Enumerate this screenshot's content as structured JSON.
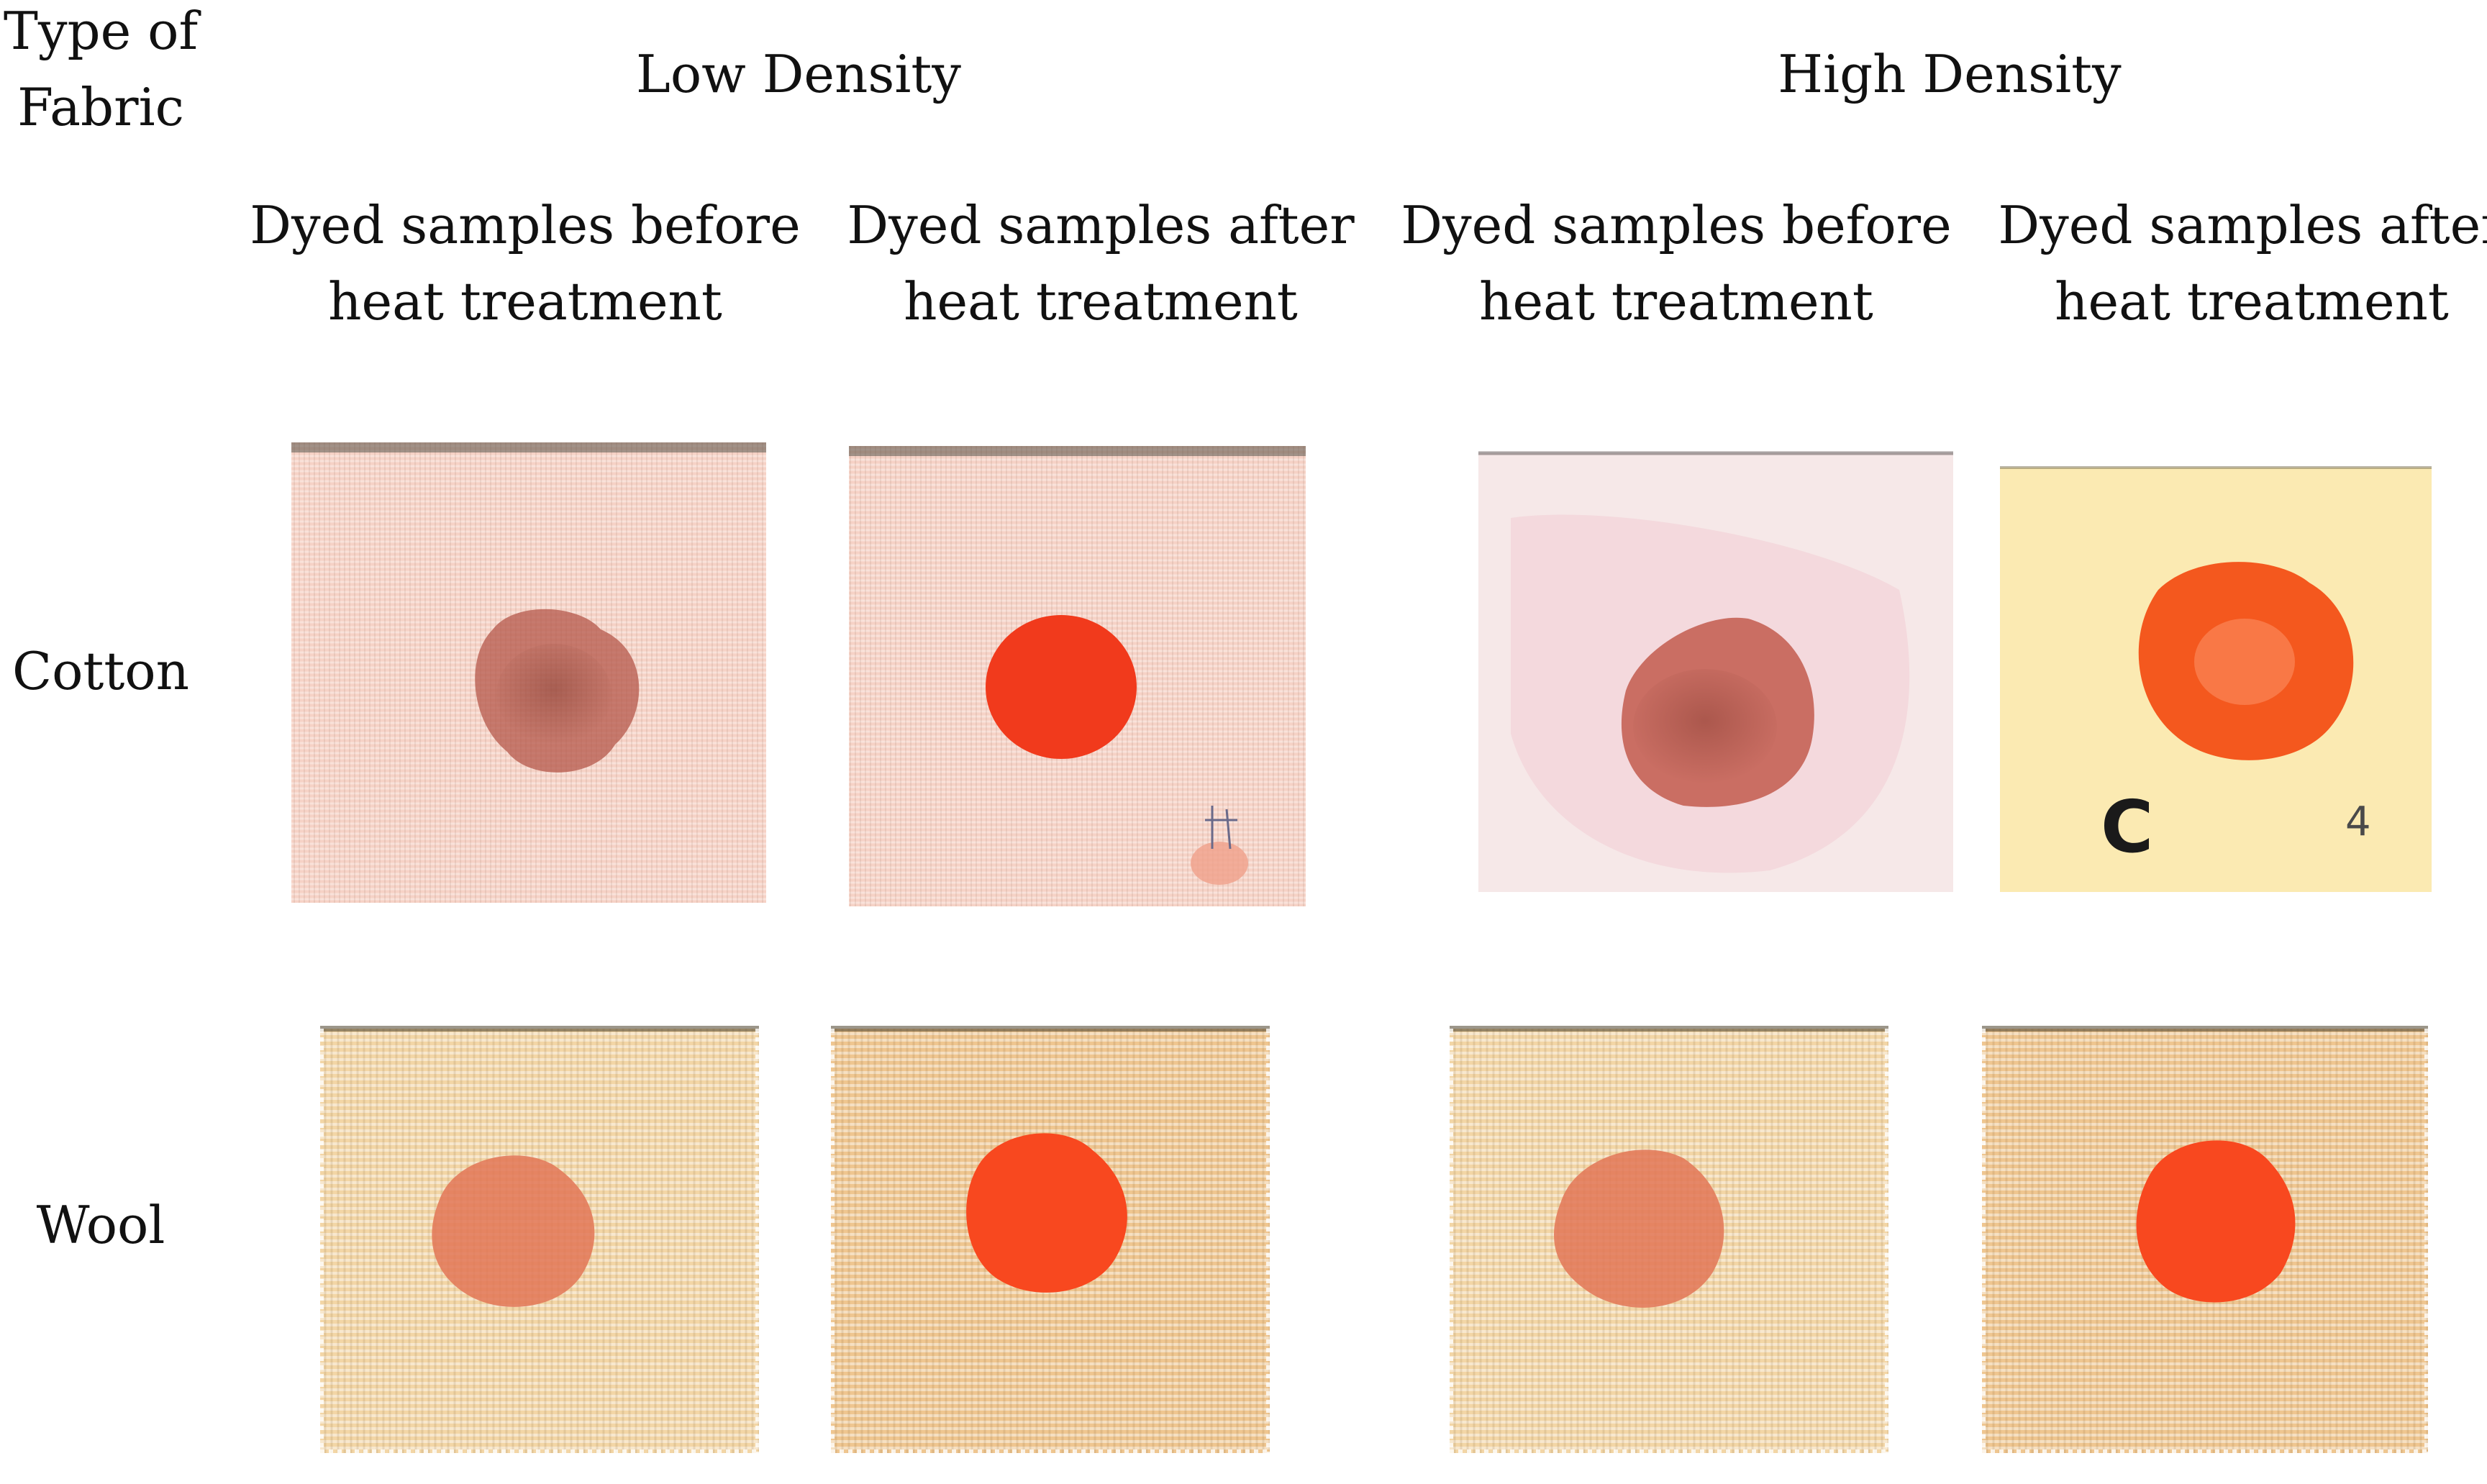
{
  "corner_header": {
    "line1": "Type of",
    "line2": "Fabric"
  },
  "groups": [
    {
      "label": "Low Density"
    },
    {
      "label": "High Density"
    }
  ],
  "columns": [
    {
      "line1": "Dyed samples before",
      "line2": "heat treatment"
    },
    {
      "line1": "Dyed samples after",
      "line2": "heat treatment"
    },
    {
      "line1": "Dyed samples before",
      "line2": "heat treatment"
    },
    {
      "line1": "Dyed samples after",
      "line2": "heat treatment"
    }
  ],
  "rows": [
    {
      "label": "Cotton"
    },
    {
      "label": "Wool"
    }
  ],
  "sample_marks": {
    "cotton_high_after_letter": "C",
    "cotton_high_after_number": "4"
  },
  "colors": {
    "cotton_low_fabric": "#f6d2c6",
    "cotton_low_before_spot": "#b4574a",
    "cotton_low_after_spot": "#f13a1c",
    "cotton_high_before_fabric": "#f6e8e8",
    "cotton_high_before_spot": "#c25a4e",
    "cotton_high_after_fabric": "#fbeab2",
    "cotton_high_after_spot": "#f4581e",
    "wool_before_fabric": "#f3d6a6",
    "wool_before_spot": "#e27656",
    "wool_after_fabric": "#efc690",
    "wool_after_spot": "#f8481f"
  }
}
